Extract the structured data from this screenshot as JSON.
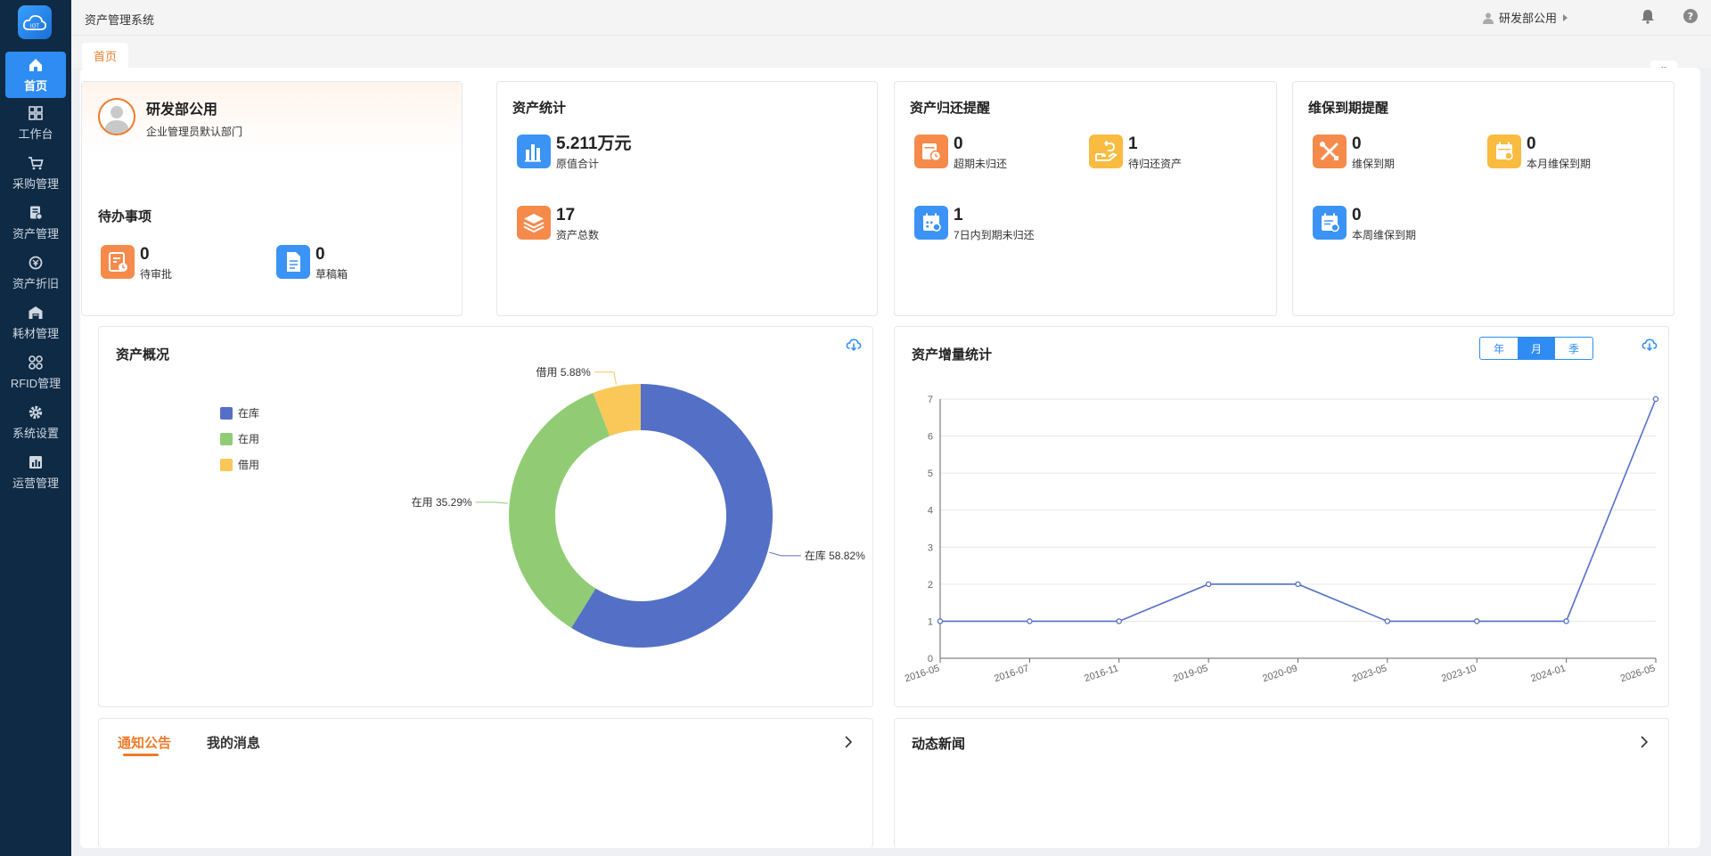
{
  "app": {
    "title": "资产管理系统"
  },
  "header": {
    "user": "研发部公用"
  },
  "tabs": [
    {
      "label": "首页"
    }
  ],
  "sidebar": {
    "items": [
      {
        "label": "首页",
        "icon": "home-icon"
      },
      {
        "label": "工作台",
        "icon": "grid-icon"
      },
      {
        "label": "采购管理",
        "icon": "cart-icon"
      },
      {
        "label": "资产管理",
        "icon": "document-icon"
      },
      {
        "label": "资产折旧",
        "icon": "coin-icon"
      },
      {
        "label": "耗材管理",
        "icon": "warehouse-icon"
      },
      {
        "label": "RFID管理",
        "icon": "rfid-icon"
      },
      {
        "label": "系统设置",
        "icon": "gear-icon"
      },
      {
        "label": "运营管理",
        "icon": "bar-chart-icon"
      }
    ]
  },
  "profile": {
    "name": "研发部公用",
    "dept": "企业管理员默认部门"
  },
  "todo": {
    "title": "待办事项",
    "items": [
      {
        "value": "0",
        "label": "待审批",
        "color": "#f58a4b"
      },
      {
        "value": "0",
        "label": "草稿箱",
        "color": "#3b93f5"
      }
    ]
  },
  "asset_stats": {
    "title": "资产统计",
    "items": [
      {
        "value": "5.211万元",
        "label": "原值合计",
        "color": "#3b93f5"
      },
      {
        "value": "17",
        "label": "资产总数",
        "color": "#f58a4b"
      }
    ]
  },
  "return_remind": {
    "title": "资产归还提醒",
    "items": [
      {
        "value": "0",
        "label": "超期未归还",
        "color": "#f58a4b"
      },
      {
        "value": "1",
        "label": "待归还资产",
        "color": "#f9bb40"
      },
      {
        "value": "1",
        "label": "7日内到期未归还",
        "color": "#3b93f5"
      }
    ]
  },
  "maint_remind": {
    "title": "维保到期提醒",
    "items": [
      {
        "value": "0",
        "label": "维保到期",
        "color": "#f58a4b"
      },
      {
        "value": "0",
        "label": "本月维保到期",
        "color": "#f9bb40"
      },
      {
        "value": "0",
        "label": "本周维保到期",
        "color": "#3b93f5"
      }
    ]
  },
  "overview": {
    "title": "资产概况"
  },
  "growth": {
    "title": "资产增量统计",
    "periods": [
      "年",
      "月",
      "季"
    ],
    "selected": "月"
  },
  "notice": {
    "tabs": [
      "通知公告",
      "我的消息"
    ]
  },
  "news": {
    "title": "动态新闻"
  },
  "chart_data": [
    {
      "type": "pie",
      "title": "资产概况",
      "slices": [
        {
          "name": "在库",
          "value": 58.82,
          "label": "在库 58.82%",
          "color": "#5470c6"
        },
        {
          "name": "在用",
          "value": 35.29,
          "label": "在用 35.29%",
          "color": "#91cc75"
        },
        {
          "name": "借用",
          "value": 5.88,
          "label": "借用 5.88%",
          "color": "#fac858"
        }
      ],
      "legend": "left"
    },
    {
      "type": "line",
      "title": "资产增量统计",
      "x": [
        "2016-05",
        "2016-07",
        "2016-11",
        "2019-05",
        "2020-09",
        "2023-05",
        "2023-10",
        "2024-01",
        "2026-05"
      ],
      "values": [
        1,
        1,
        1,
        2,
        2,
        1,
        1,
        1,
        7
      ],
      "ylim": [
        0,
        7
      ],
      "yticks": [
        0,
        1,
        2,
        3,
        4,
        5,
        6,
        7
      ],
      "color": "#5470c6",
      "grid": true
    }
  ]
}
